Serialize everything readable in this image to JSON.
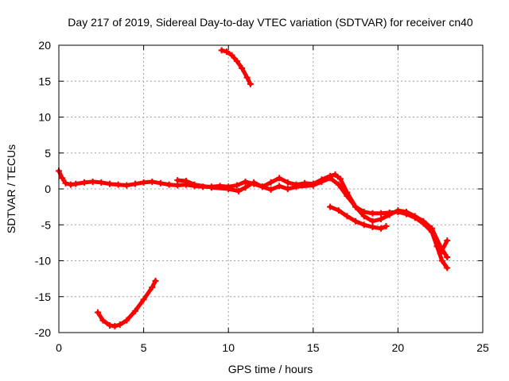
{
  "chart_data": {
    "type": "scatter",
    "title": "Day 217 of 2019, Sidereal Day-to-day VTEC variation (SDTVAR) for receiver cn40",
    "xlabel": "GPS time / hours",
    "ylabel": "SDTVAR / TECUs",
    "xlim": [
      0,
      25
    ],
    "ylim": [
      -20,
      20
    ],
    "xticks": [
      0,
      5,
      10,
      15,
      20,
      25
    ],
    "yticks": [
      -20,
      -15,
      -10,
      -5,
      0,
      5,
      10,
      15,
      20
    ],
    "xtick_labels": [
      "0",
      "5",
      "10",
      "15",
      "20",
      "25"
    ],
    "ytick_labels": [
      "-20",
      "-15",
      "-10",
      "-5",
      "0",
      "5",
      "10",
      "15",
      "20"
    ],
    "grid": true,
    "marker_color": "#ff0000",
    "series": [
      {
        "name": "main-track-a",
        "x": [
          0.0,
          0.2,
          0.4,
          0.7,
          1.0,
          1.5,
          2.0,
          2.5,
          3.0,
          3.5,
          4.0,
          4.5,
          5.0,
          5.5,
          6.0,
          6.5,
          7.0,
          7.5,
          8.0,
          8.5,
          9.0,
          9.5,
          10.0,
          10.5,
          11.0,
          11.5,
          12.0,
          12.5,
          13.0,
          13.5,
          14.0,
          14.5,
          15.0,
          15.5,
          16.0,
          16.3,
          16.6,
          17.0,
          17.5,
          18.0,
          18.5,
          19.0,
          19.5,
          20.0,
          20.5,
          21.0,
          21.5,
          22.0,
          22.3,
          22.6,
          22.9
        ],
        "y": [
          2.5,
          1.5,
          0.8,
          0.6,
          0.7,
          0.9,
          1.0,
          0.9,
          0.7,
          0.6,
          0.5,
          0.7,
          0.9,
          1.0,
          0.8,
          0.6,
          0.5,
          0.6,
          0.4,
          0.3,
          0.3,
          0.4,
          0.3,
          0.5,
          1.0,
          0.7,
          0.3,
          0.9,
          1.5,
          0.9,
          0.6,
          0.8,
          0.7,
          1.3,
          1.8,
          2.0,
          1.4,
          -0.5,
          -2.5,
          -3.2,
          -3.4,
          -3.4,
          -3.3,
          -3.2,
          -3.5,
          -4.0,
          -4.8,
          -6.0,
          -8.0,
          -10.0,
          -11.0
        ]
      },
      {
        "name": "main-track-b",
        "x": [
          7.0,
          7.5,
          8.0,
          9.0,
          10.0,
          10.6,
          11.0,
          11.5,
          12.0,
          12.5,
          13.0,
          13.5,
          14.0,
          15.0,
          15.5,
          16.0,
          16.5,
          17.0,
          17.5,
          18.0,
          18.5,
          19.0,
          19.5,
          20.0,
          20.5,
          21.0,
          21.5,
          22.0,
          22.5,
          22.9
        ],
        "y": [
          1.2,
          1.1,
          0.6,
          0.2,
          0.0,
          -0.3,
          0.2,
          0.9,
          0.3,
          -0.1,
          0.4,
          0.0,
          0.3,
          0.5,
          1.0,
          1.5,
          0.6,
          -1.0,
          -2.5,
          -3.8,
          -4.5,
          -4.2,
          -3.6,
          -3.0,
          -3.2,
          -3.8,
          -4.5,
          -5.5,
          -8.0,
          -9.5
        ]
      },
      {
        "name": "segment-c",
        "x": [
          16.0,
          16.5,
          17.0,
          17.5,
          18.0,
          18.5,
          19.0,
          19.3
        ],
        "y": [
          -2.5,
          -3.0,
          -3.8,
          -4.5,
          -5.0,
          -5.3,
          -5.5,
          -5.2
        ]
      },
      {
        "name": "segment-d",
        "x": [
          22.5,
          22.9
        ],
        "y": [
          -9.0,
          -7.2
        ]
      },
      {
        "name": "upper-arc",
        "x": [
          9.6,
          9.9,
          10.2,
          10.5,
          10.8,
          11.1,
          11.3
        ],
        "y": [
          19.3,
          19.1,
          18.6,
          17.8,
          16.8,
          15.5,
          14.6
        ]
      },
      {
        "name": "lower-arc",
        "x": [
          2.3,
          2.6,
          3.0,
          3.3,
          3.6,
          4.0,
          4.5,
          5.0,
          5.5,
          5.7
        ],
        "y": [
          -17.2,
          -18.3,
          -19.0,
          -19.1,
          -18.9,
          -18.3,
          -17.0,
          -15.4,
          -13.7,
          -12.8
        ]
      }
    ]
  }
}
